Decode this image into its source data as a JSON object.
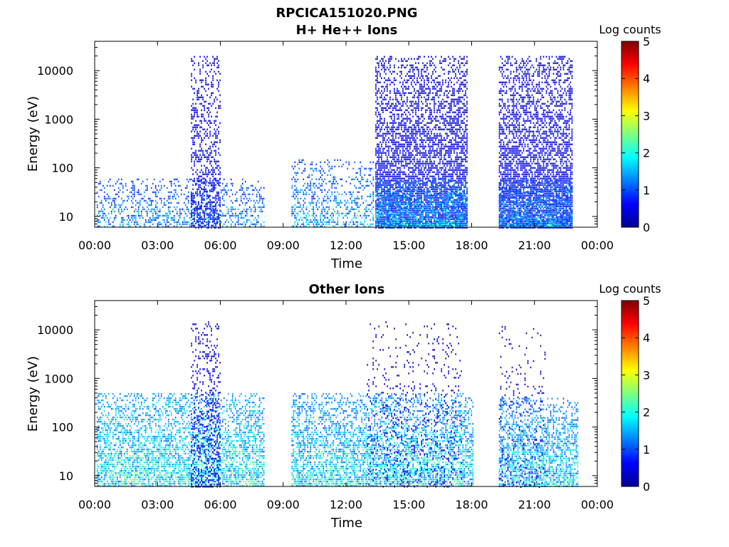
{
  "chart_data": [
    {
      "type": "heatmap",
      "title": "RPCICA151020.PNG",
      "subtitle": "H+ He++ Ions",
      "xlabel": "Time",
      "ylabel": "Energy (eV)",
      "x_ticks": [
        "00:00",
        "03:00",
        "06:00",
        "09:00",
        "12:00",
        "15:00",
        "18:00",
        "21:00",
        "00:00"
      ],
      "y_ticks": [
        "10",
        "100",
        "1000",
        "10000"
      ],
      "yscale": "log",
      "xlim_hours": [
        0,
        24
      ],
      "ylim_eV": [
        6,
        40000
      ],
      "colorbar": {
        "label": "Log counts",
        "ticks": [
          "0",
          "1",
          "2",
          "3",
          "4",
          "5"
        ],
        "range": [
          0,
          5
        ],
        "colormap": "jet"
      },
      "activity": [
        {
          "t0": 0.1,
          "t1": 8.1,
          "emax": 60,
          "level": 1.3,
          "density": 0.45
        },
        {
          "t0": 4.6,
          "t1": 6.0,
          "emax": 20000,
          "level": 0.6,
          "density": 0.55
        },
        {
          "t0": 9.4,
          "t1": 13.3,
          "emax": 150,
          "level": 1.4,
          "density": 0.45
        },
        {
          "t0": 13.4,
          "t1": 17.8,
          "emax": 20000,
          "level": 0.6,
          "density": 0.85
        },
        {
          "t0": 13.4,
          "t1": 17.8,
          "emax": 60,
          "level": 1.6,
          "density": 0.9
        },
        {
          "t0": 19.3,
          "t1": 22.8,
          "emax": 20000,
          "level": 0.6,
          "density": 0.85
        },
        {
          "t0": 19.3,
          "t1": 22.8,
          "emax": 60,
          "level": 1.4,
          "density": 0.9
        }
      ]
    },
    {
      "type": "heatmap",
      "title": "Other Ions",
      "xlabel": "Time",
      "ylabel": "Energy (eV)",
      "x_ticks": [
        "00:00",
        "03:00",
        "06:00",
        "09:00",
        "12:00",
        "15:00",
        "18:00",
        "21:00",
        "00:00"
      ],
      "y_ticks": [
        "10",
        "100",
        "1000",
        "10000"
      ],
      "yscale": "log",
      "xlim_hours": [
        0,
        24
      ],
      "ylim_eV": [
        6,
        40000
      ],
      "colorbar": {
        "label": "Log counts",
        "ticks": [
          "0",
          "1",
          "2",
          "3",
          "4",
          "5"
        ],
        "range": [
          0,
          5
        ],
        "colormap": "jet"
      },
      "activity": [
        {
          "t0": 0.1,
          "t1": 8.1,
          "emax": 500,
          "level": 1.9,
          "density": 0.75
        },
        {
          "t0": 4.6,
          "t1": 6.0,
          "emax": 15000,
          "level": 0.6,
          "density": 0.4
        },
        {
          "t0": 9.4,
          "t1": 18.1,
          "emax": 500,
          "level": 1.8,
          "density": 0.75
        },
        {
          "t0": 13.0,
          "t1": 17.5,
          "emax": 15000,
          "level": 0.5,
          "density": 0.15
        },
        {
          "t0": 19.3,
          "t1": 23.1,
          "emax": 400,
          "level": 1.7,
          "density": 0.75
        },
        {
          "t0": 19.3,
          "t1": 21.5,
          "emax": 12000,
          "level": 0.5,
          "density": 0.12
        }
      ]
    }
  ]
}
